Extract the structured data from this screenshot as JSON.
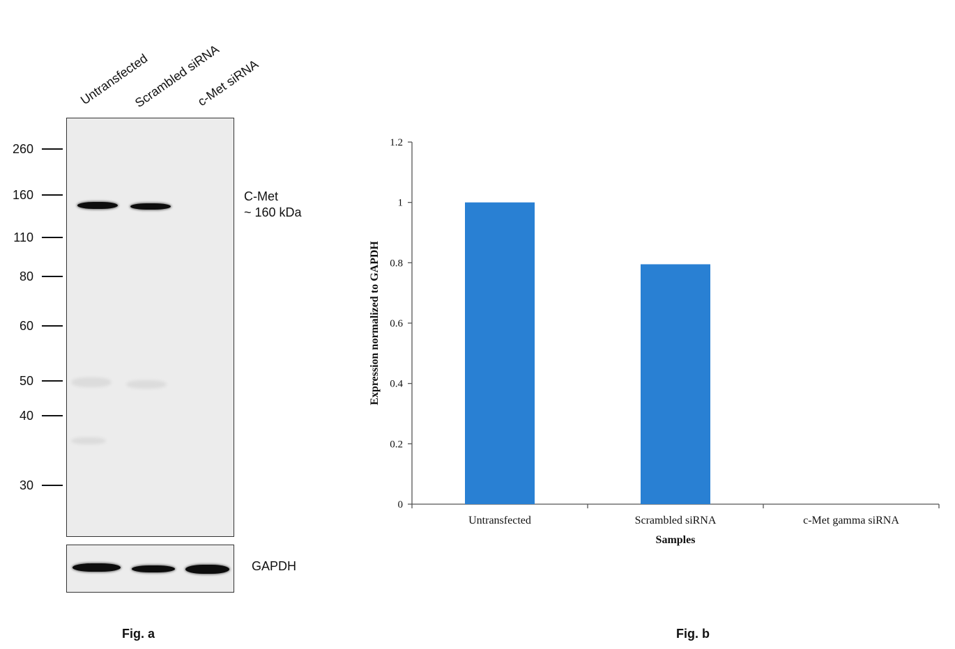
{
  "fig_a": {
    "caption": "Fig. a",
    "lanes": [
      "Untransfected",
      "Scrambled siRNA",
      "c-Met siRNA"
    ],
    "markers": [
      "260",
      "160",
      "110",
      "80",
      "60",
      "50",
      "40",
      "30"
    ],
    "target_label": "C-Met",
    "target_size": "~ 160 kDa",
    "loading_control": "GAPDH"
  },
  "fig_b": {
    "caption": "Fig. b"
  },
  "chart_data": {
    "type": "bar",
    "categories": [
      "Untransfected",
      "Scrambled siRNA",
      "c-Met gamma siRNA"
    ],
    "values": [
      1.0,
      0.795,
      0.0
    ],
    "ylabel": "Expression normalized to GAPDH",
    "xlabel": "Samples",
    "ylim": [
      0,
      1.2
    ],
    "yticks": [
      "0",
      "0.2",
      "0.4",
      "0.6",
      "0.8",
      "1",
      "1.2"
    ],
    "bar_color": "#2980d3",
    "grid": false,
    "legend": "none"
  }
}
